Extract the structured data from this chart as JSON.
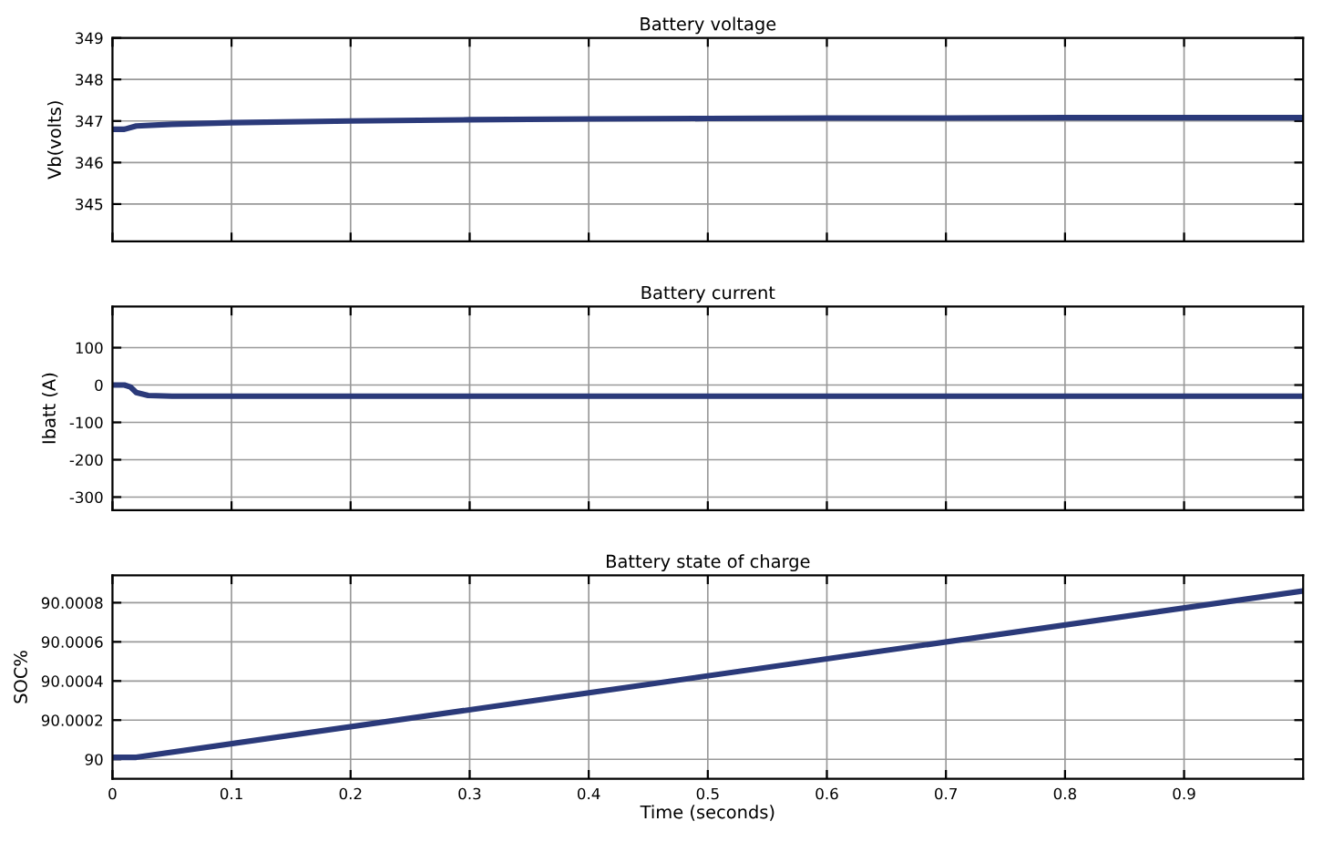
{
  "chart_data": [
    {
      "type": "line",
      "title": "Battery voltage",
      "ylabel": "Vb(volts)",
      "x": [
        0,
        0.01,
        0.02,
        0.05,
        0.1,
        0.2,
        0.3,
        0.4,
        0.5,
        0.6,
        0.7,
        0.8,
        0.9,
        1.0
      ],
      "series": [
        {
          "color": "#2b3a7a",
          "values": [
            346.8,
            346.8,
            346.88,
            346.92,
            346.96,
            347.0,
            347.03,
            347.05,
            347.06,
            347.07,
            347.07,
            347.08,
            347.08,
            347.08
          ]
        }
      ],
      "xlim": [
        0,
        1
      ],
      "xticks": [
        0,
        0.1,
        0.2,
        0.3,
        0.4,
        0.5,
        0.6,
        0.7,
        0.8,
        0.9
      ],
      "ylim": [
        344.1,
        349
      ],
      "yticks": [
        345,
        346,
        347,
        348,
        349
      ],
      "grid": true,
      "tick_labels": "y",
      "line_style": "solid"
    },
    {
      "type": "line",
      "title": "Battery current",
      "ylabel": "Ibatt (A)",
      "x": [
        0,
        0.01,
        0.015,
        0.02,
        0.03,
        0.05,
        0.1,
        0.5,
        1.0
      ],
      "series": [
        {
          "color": "#2b3a7a",
          "values": [
            0,
            0,
            -5,
            -20,
            -28,
            -30,
            -30,
            -30,
            -30
          ]
        }
      ],
      "xlim": [
        0,
        1
      ],
      "xticks": [
        0,
        0.1,
        0.2,
        0.3,
        0.4,
        0.5,
        0.6,
        0.7,
        0.8,
        0.9
      ],
      "ylim": [
        -335,
        210
      ],
      "yticks": [
        -300,
        -200,
        -100,
        0,
        100
      ],
      "grid": true,
      "tick_labels": "y",
      "line_style": "solid"
    },
    {
      "type": "line",
      "title": "Battery state of charge",
      "ylabel": "SOC%",
      "xlabel": "Time (seconds)",
      "x": [
        0,
        0.02,
        1.0
      ],
      "series": [
        {
          "color": "#2b3a7a",
          "values": [
            90.00001,
            90.00001,
            90.00086
          ]
        }
      ],
      "xlim": [
        0,
        1
      ],
      "xticks": [
        0,
        0.1,
        0.2,
        0.3,
        0.4,
        0.5,
        0.6,
        0.7,
        0.8,
        0.9
      ],
      "ylim": [
        89.9999,
        90.00094
      ],
      "yticks": [
        {
          "value": 90,
          "label": "90"
        },
        {
          "value": 90.0002,
          "label": "90.0002"
        },
        {
          "value": 90.0004,
          "label": "90.0004"
        },
        {
          "value": 90.0006,
          "label": "90.0006"
        },
        {
          "value": 90.0008,
          "label": "90.0008"
        }
      ],
      "grid": true,
      "line_style": "solid"
    }
  ]
}
